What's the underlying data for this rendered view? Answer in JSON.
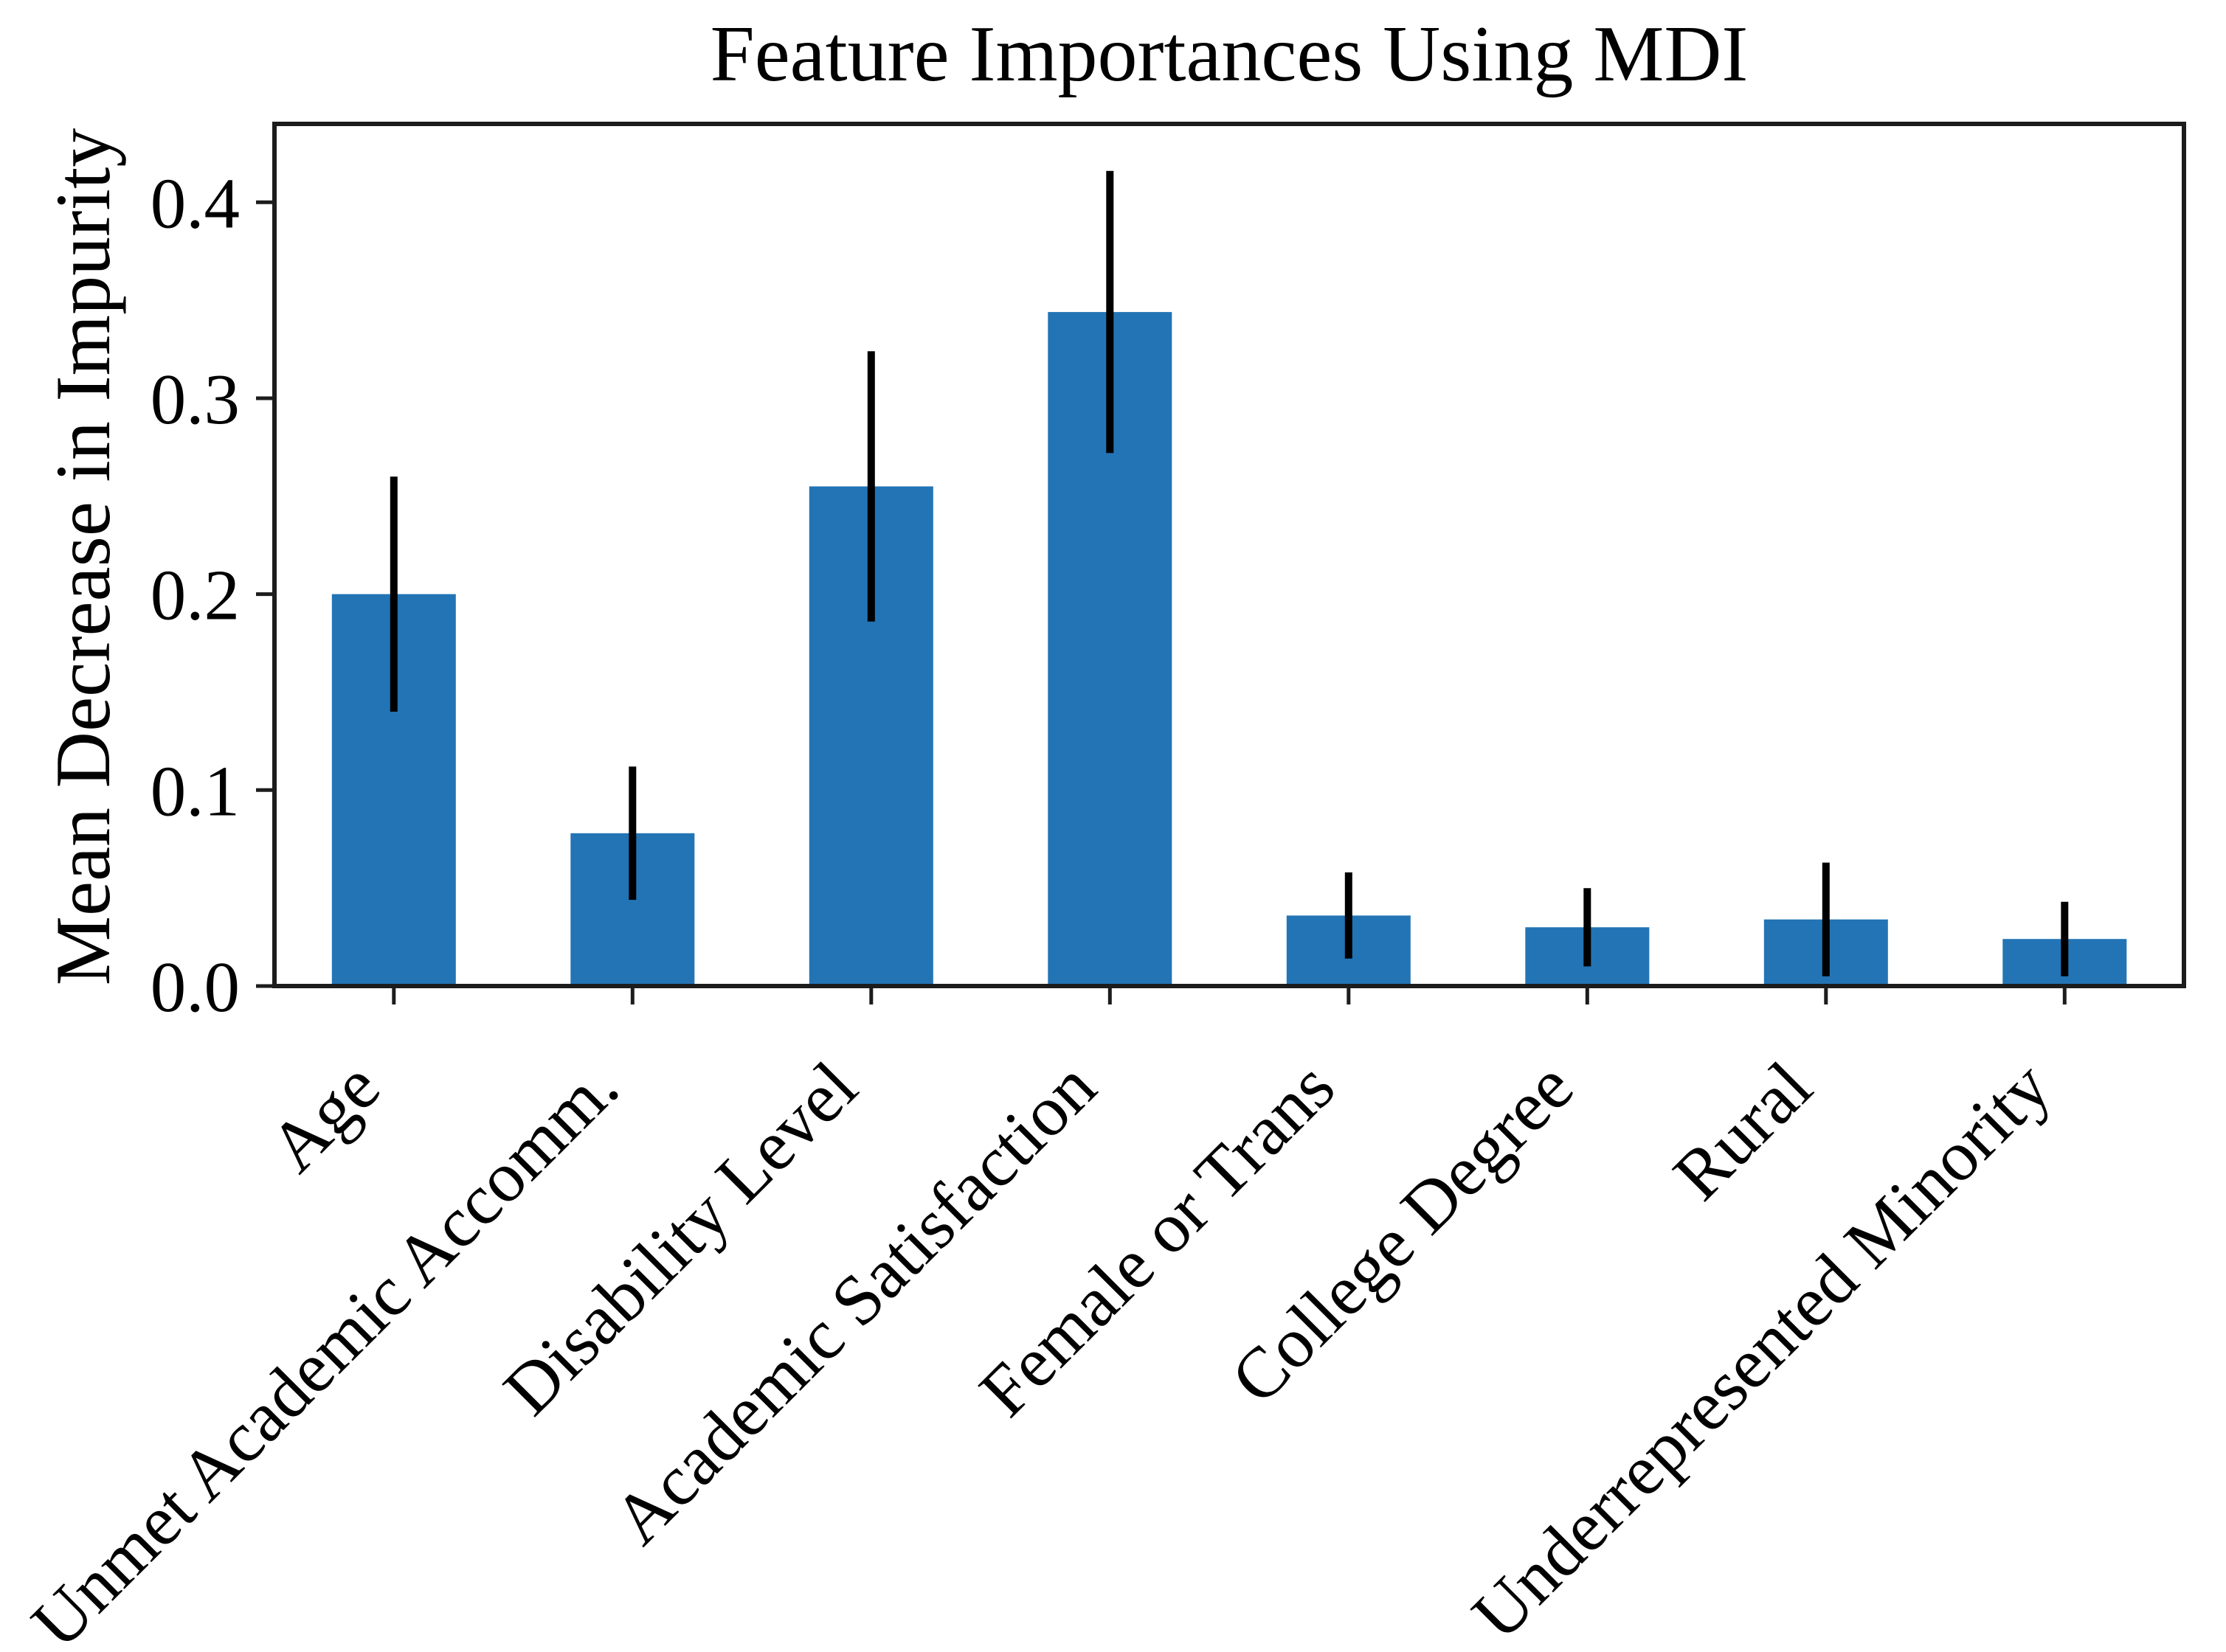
{
  "chart_data": {
    "type": "bar",
    "title": "Feature Importances Using MDI",
    "ylabel": "Mean Decrease in Impurity",
    "xlabel": "",
    "categories": [
      "Age",
      "Unmet Academic Accomm.",
      "Disability Level",
      "Academic Satisfaction",
      "Female or Trans",
      "College Degree",
      "Rural",
      "Underrepresented Minority"
    ],
    "values": [
      0.2,
      0.078,
      0.255,
      0.344,
      0.036,
      0.03,
      0.034,
      0.024
    ],
    "errors": [
      0.06,
      0.034,
      0.069,
      0.072,
      0.022,
      0.02,
      0.029,
      0.019
    ],
    "yticks": [
      "0.0",
      "0.1",
      "0.2",
      "0.3",
      "0.4"
    ],
    "ylim": [
      0,
      0.44
    ],
    "x_tick_label_rotation_deg": 45,
    "grid": false,
    "legend": "none",
    "bar_color": "#2274b5",
    "error_bar_color": "#000000",
    "axis_color": "#1c1c1c",
    "background": "#ffffff"
  }
}
